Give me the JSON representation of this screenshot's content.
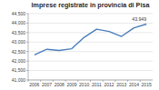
{
  "chart_data": {
    "type": "line",
    "title": "Imprese registrate in provincia di Pisa",
    "categories": [
      "2006",
      "2007",
      "2008",
      "2009",
      "2010",
      "2011",
      "2012",
      "2013",
      "2014",
      "2015"
    ],
    "values": [
      42320,
      42620,
      42560,
      42650,
      43250,
      43680,
      43560,
      43300,
      43750,
      43949
    ],
    "value_labels": [
      null,
      null,
      null,
      null,
      null,
      null,
      null,
      null,
      null,
      "43.949"
    ],
    "color": "#4a7ebb",
    "ylim": [
      41000,
      44500
    ],
    "yticks": [
      {
        "value": 41000,
        "label": "41,000"
      },
      {
        "value": 41500,
        "label": "41,500"
      },
      {
        "value": 42000,
        "label": "42,000"
      },
      {
        "value": 42500,
        "label": "42,500"
      },
      {
        "value": 43000,
        "label": "43,000"
      },
      {
        "value": 43500,
        "label": "43,500"
      },
      {
        "value": 44000,
        "label": "44,000"
      },
      {
        "value": 44500,
        "label": "44,500"
      }
    ],
    "grid": true
  }
}
